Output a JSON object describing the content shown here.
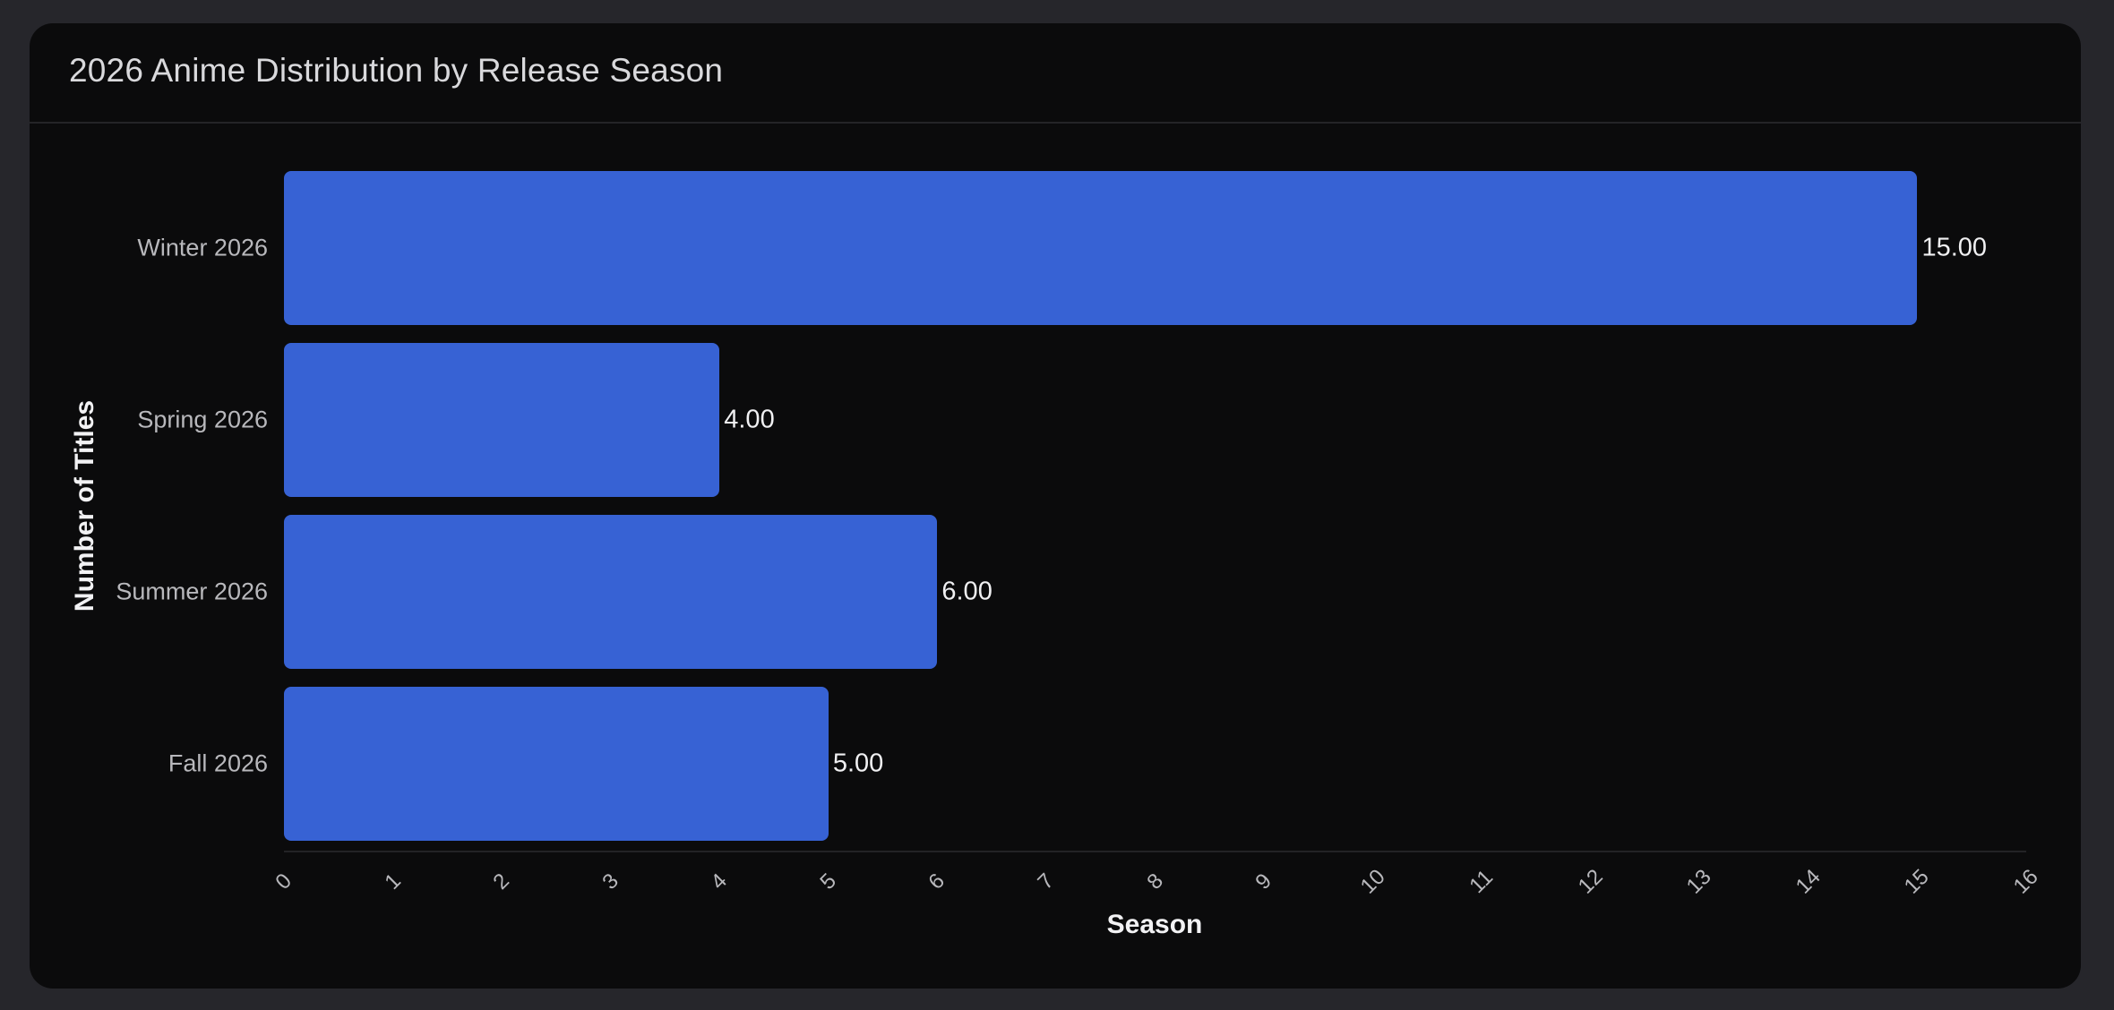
{
  "card": {
    "title": "2026 Anime Distribution by Release Season"
  },
  "chart_data": {
    "type": "bar",
    "orientation": "horizontal",
    "title": "2026 Anime Distribution by Release Season",
    "categories": [
      "Winter 2026",
      "Spring 2026",
      "Summer 2026",
      "Fall 2026"
    ],
    "values": [
      15,
      4,
      6,
      5
    ],
    "value_labels": [
      "15.00",
      "4.00",
      "6.00",
      "5.00"
    ],
    "xlabel": "Season",
    "ylabel": "Number of Titles",
    "xlim": [
      0,
      16
    ],
    "x_ticks": [
      "0",
      "1",
      "2",
      "3",
      "4",
      "5",
      "6",
      "7",
      "8",
      "9",
      "10",
      "11",
      "12",
      "13",
      "14",
      "15",
      "16"
    ],
    "grid": false,
    "legend": null,
    "bar_color": "#3762d4"
  }
}
